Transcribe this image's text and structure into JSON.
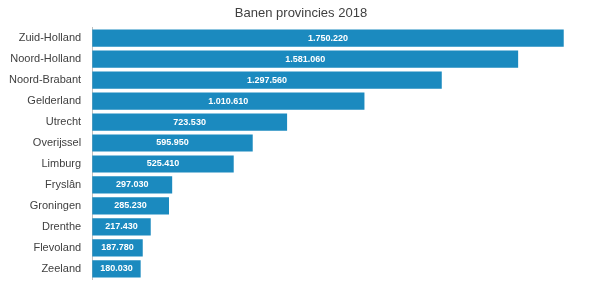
{
  "chart_data": {
    "type": "bar",
    "orientation": "horizontal",
    "title": "Banen provincies 2018",
    "categories": [
      "Zuid-Holland",
      "Noord-Holland",
      "Noord-Brabant",
      "Gelderland",
      "Utrecht",
      "Overijssel",
      "Limburg",
      "Fryslân",
      "Groningen",
      "Drenthe",
      "Flevoland",
      "Zeeland"
    ],
    "values": [
      1750220,
      1581060,
      1297560,
      1010610,
      723530,
      595950,
      525410,
      297030,
      285230,
      217430,
      187780,
      180030
    ],
    "value_labels": [
      "1.750.220",
      "1.581.060",
      "1.297.560",
      "1.010.610",
      "723.530",
      "595.950",
      "525.410",
      "297.030",
      "285.230",
      "217.430",
      "187.780",
      "180.030"
    ],
    "color": "#1b8abf",
    "xlim": [
      0,
      1870000
    ],
    "data_labels": true,
    "tick_labels": "y",
    "grid": false,
    "legend": false
  }
}
